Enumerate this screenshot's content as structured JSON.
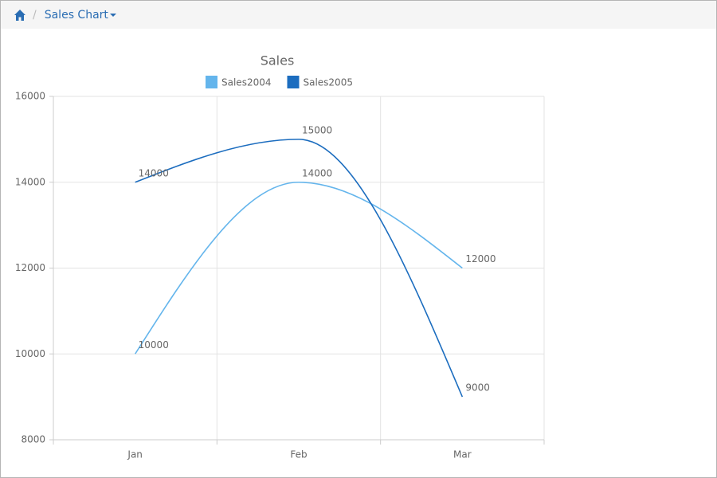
{
  "breadcrumb": {
    "label": "Sales Chart"
  },
  "chart_data": {
    "type": "line",
    "title": "Sales",
    "categories": [
      "Jan",
      "Feb",
      "Mar"
    ],
    "series": [
      {
        "name": "Sales2004",
        "color": "#64b5ec",
        "values": [
          10000,
          14000,
          12000
        ]
      },
      {
        "name": "Sales2005",
        "color": "#1c6dbf",
        "values": [
          14000,
          15000,
          9000
        ]
      }
    ],
    "ylim": [
      8000,
      16000
    ],
    "yticks": [
      8000,
      10000,
      12000,
      14000,
      16000
    ],
    "grid": true
  }
}
